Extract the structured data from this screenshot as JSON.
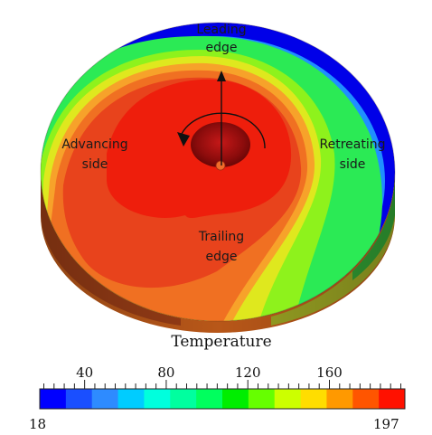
{
  "annotations": {
    "leading": [
      "Leading",
      "edge"
    ],
    "advancing": [
      "Advancing",
      "side"
    ],
    "retreating": [
      "Retreating",
      "side"
    ],
    "trailing": [
      "Trailing",
      "edge"
    ]
  },
  "colorbar": {
    "title": "Temperature",
    "min": 18,
    "max": 197,
    "min_label": "18",
    "max_label": "197",
    "ticks": [
      "40",
      "80",
      "120",
      "160"
    ],
    "colors": [
      "#0000ff",
      "#1a4fff",
      "#2e8bff",
      "#00ccff",
      "#00ffdd",
      "#00ff9f",
      "#00ff5e",
      "#00ee00",
      "#66ff00",
      "#ccff00",
      "#ffdd00",
      "#ff9900",
      "#ff5500",
      "#ff1100"
    ]
  },
  "contour_colors": {
    "blue": "#0000e8",
    "lightblue": "#1f8fff",
    "cyan": "#12d6ff",
    "aqua": "#22ffcc",
    "green": "#2bea55",
    "lime": "#8ef21c",
    "yellow": "#dfe81e",
    "orange": "#f7a22a",
    "darkorange": "#f07022",
    "redorange": "#e8431c",
    "red": "#ee1e0c",
    "tool": "#9b0f10"
  }
}
